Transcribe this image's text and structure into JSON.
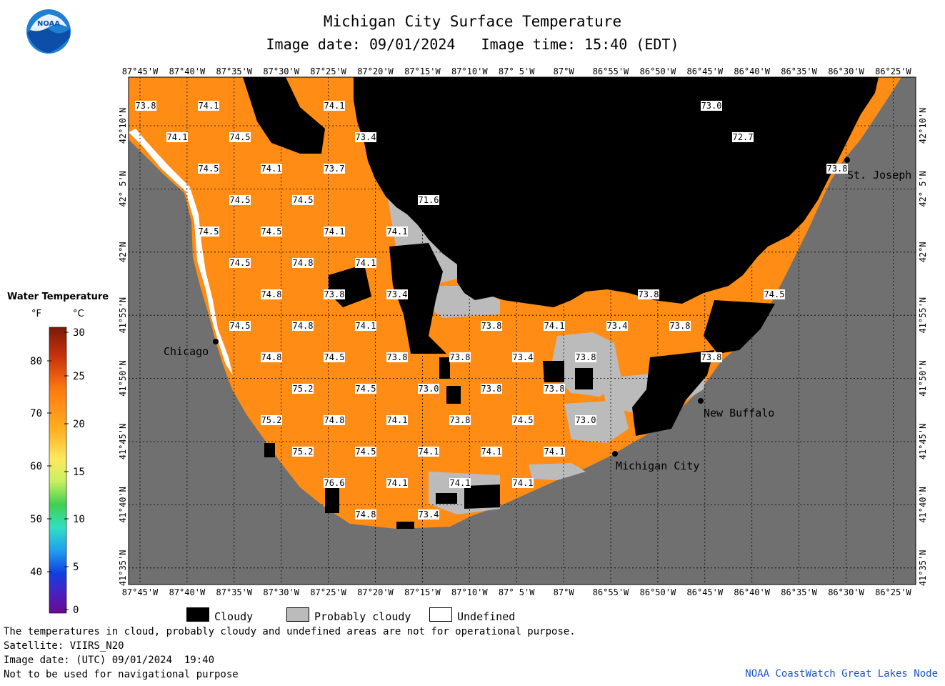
{
  "header": {
    "title": "Michigan City Surface Temperature",
    "date_label": "Image date:",
    "date_value": "09/01/2024",
    "time_label": "Image time:",
    "time_value": "15:40 (EDT)"
  },
  "logo": {
    "text": "NOAA",
    "icon": "noaa-logo-icon"
  },
  "axes": {
    "lon_ticks": [
      "87°45'W",
      "87°40'W",
      "87°35'W",
      "87°30'W",
      "87°25'W",
      "87°20'W",
      "87°15'W",
      "87°10'W",
      "87° 5'W",
      "87°W",
      "86°55'W",
      "86°50'W",
      "86°45'W",
      "86°40'W",
      "86°35'W",
      "86°30'W",
      "86°25'W"
    ],
    "lat_ticks": [
      "42°10'N",
      "42° 5'N",
      "42°N",
      "41°55'N",
      "41°50'N",
      "41°45'N",
      "41°40'N",
      "41°35'N"
    ]
  },
  "cities": [
    {
      "name": "Chicago"
    },
    {
      "name": "St. Joseph"
    },
    {
      "name": "New Buffalo"
    },
    {
      "name": "Michigan City"
    }
  ],
  "temperatures": [
    "73.8",
    "74.1",
    "74.1",
    "73.0",
    "74.1",
    "74.5",
    "73.4",
    "72.7",
    "74.5",
    "74.1",
    "73.7",
    "73.8",
    "74.5",
    "74.5",
    "71.6",
    "74.5",
    "74.5",
    "74.1",
    "74.1",
    "74.5",
    "74.8",
    "74.1",
    "74.8",
    "73.8",
    "73.4",
    "73.8",
    "74.5",
    "74.5",
    "74.8",
    "74.1",
    "73.8",
    "74.1",
    "73.4",
    "73.8",
    "74.8",
    "74.5",
    "73.8",
    "73.8",
    "73.4",
    "73.8",
    "73.8",
    "75.2",
    "74.5",
    "73.0",
    "73.8",
    "73.8",
    "75.2",
    "74.8",
    "74.1",
    "73.8",
    "74.5",
    "73.0",
    "75.2",
    "74.5",
    "74.1",
    "74.1",
    "74.1",
    "76.6",
    "74.1",
    "74.1",
    "74.1",
    "74.8",
    "73.4"
  ],
  "legend": {
    "title": "Water Temperature",
    "unit_f": "°F",
    "unit_c": "°C",
    "f_ticks": [
      "80",
      "70",
      "60",
      "50",
      "40"
    ],
    "c_ticks": [
      "30",
      "25",
      "20",
      "15",
      "10",
      "5",
      "0"
    ],
    "items": [
      {
        "label": "Cloudy",
        "color": "#000000"
      },
      {
        "label": "Probably cloudy",
        "color": "#bbbbbb"
      },
      {
        "label": "Undefined",
        "color": "#ffffff"
      }
    ]
  },
  "colors": {
    "water": "#ff8c14",
    "land": "#707070",
    "cloud": "#000000",
    "probably_cloudy": "#bbbbbb"
  },
  "notes": {
    "line1": "The temperatures in cloud, probably cloudy and undefined areas are not for operational purpose.",
    "line2": "Satellite: VIIRS_N20",
    "line3": "Image date: (UTC) 09/01/2024  19:40",
    "line4": "Not to be used for navigational purpose",
    "credit": "NOAA CoastWatch Great Lakes Node"
  }
}
